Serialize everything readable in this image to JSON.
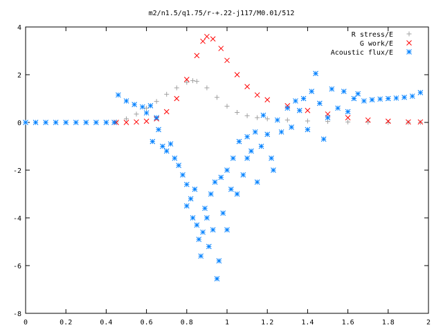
{
  "chart_data": {
    "type": "scatter",
    "title": "m2/n1.5/q1.75/r-+.22-j117/M0.01/512",
    "xlabel": "",
    "ylabel": "",
    "xlim": [
      0,
      2
    ],
    "ylim": [
      -8,
      4
    ],
    "x_ticks": [
      "0",
      "0.2",
      "0.4",
      "0.6",
      "0.8",
      "1",
      "1.2",
      "1.4",
      "1.6",
      "1.8",
      "2"
    ],
    "y_ticks": [
      "4",
      "2",
      "0",
      "-2",
      "-4",
      "-6",
      "-8"
    ],
    "grid": false,
    "legend_position": "top-right",
    "series": [
      {
        "name": "R stress/E",
        "marker": "+",
        "color": "#a0a0a0",
        "points": [
          [
            0.45,
            0.02
          ],
          [
            0.5,
            0.15
          ],
          [
            0.55,
            0.35
          ],
          [
            0.6,
            0.6
          ],
          [
            0.65,
            0.88
          ],
          [
            0.7,
            1.18
          ],
          [
            0.75,
            1.45
          ],
          [
            0.8,
            1.68
          ],
          [
            0.83,
            1.75
          ],
          [
            0.85,
            1.72
          ],
          [
            0.9,
            1.45
          ],
          [
            0.95,
            1.05
          ],
          [
            1.0,
            0.68
          ],
          [
            1.05,
            0.42
          ],
          [
            1.1,
            0.28
          ],
          [
            1.15,
            0.2
          ],
          [
            1.2,
            0.15
          ],
          [
            1.3,
            0.1
          ],
          [
            1.4,
            0.06
          ],
          [
            1.5,
            0.04
          ],
          [
            1.6,
            0.02
          ],
          [
            1.7,
            0.01
          ],
          [
            1.8,
            0.0
          ],
          [
            1.9,
            0.0
          ],
          [
            1.96,
            0.0
          ]
        ]
      },
      {
        "name": "G work/E",
        "marker": "x",
        "color": "#ff0000",
        "points": [
          [
            0.45,
            0.0
          ],
          [
            0.5,
            0.0
          ],
          [
            0.55,
            0.02
          ],
          [
            0.6,
            0.05
          ],
          [
            0.65,
            0.15
          ],
          [
            0.7,
            0.45
          ],
          [
            0.75,
            1.0
          ],
          [
            0.8,
            1.8
          ],
          [
            0.85,
            2.8
          ],
          [
            0.88,
            3.4
          ],
          [
            0.9,
            3.6
          ],
          [
            0.93,
            3.5
          ],
          [
            0.97,
            3.1
          ],
          [
            1.0,
            2.6
          ],
          [
            1.05,
            2.0
          ],
          [
            1.1,
            1.5
          ],
          [
            1.15,
            1.15
          ],
          [
            1.2,
            0.95
          ],
          [
            1.3,
            0.7
          ],
          [
            1.4,
            0.5
          ],
          [
            1.5,
            0.35
          ],
          [
            1.6,
            0.2
          ],
          [
            1.7,
            0.1
          ],
          [
            1.8,
            0.05
          ],
          [
            1.9,
            0.02
          ],
          [
            1.96,
            0.02
          ]
        ]
      },
      {
        "name": "Acoustic flux/E",
        "marker": "*",
        "color": "#0080ff",
        "points": [
          [
            0.0,
            0.0
          ],
          [
            0.05,
            0.0
          ],
          [
            0.1,
            0.0
          ],
          [
            0.15,
            0.0
          ],
          [
            0.2,
            0.0
          ],
          [
            0.25,
            0.0
          ],
          [
            0.3,
            0.0
          ],
          [
            0.35,
            0.0
          ],
          [
            0.4,
            0.0
          ],
          [
            0.44,
            0.0
          ],
          [
            0.46,
            1.15
          ],
          [
            0.5,
            0.9
          ],
          [
            0.54,
            0.75
          ],
          [
            0.58,
            0.65
          ],
          [
            0.6,
            0.4
          ],
          [
            0.62,
            0.7
          ],
          [
            0.63,
            -0.8
          ],
          [
            0.65,
            0.2
          ],
          [
            0.66,
            -0.3
          ],
          [
            0.68,
            -1.0
          ],
          [
            0.7,
            -1.2
          ],
          [
            0.72,
            -0.9
          ],
          [
            0.74,
            -1.5
          ],
          [
            0.76,
            -1.8
          ],
          [
            0.78,
            -2.2
          ],
          [
            0.8,
            -2.6
          ],
          [
            0.8,
            -3.5
          ],
          [
            0.82,
            -3.2
          ],
          [
            0.83,
            -4.0
          ],
          [
            0.84,
            -2.8
          ],
          [
            0.85,
            -4.3
          ],
          [
            0.86,
            -4.9
          ],
          [
            0.87,
            -5.6
          ],
          [
            0.88,
            -4.6
          ],
          [
            0.89,
            -3.6
          ],
          [
            0.9,
            -4.0
          ],
          [
            0.91,
            -5.2
          ],
          [
            0.92,
            -3.0
          ],
          [
            0.93,
            -4.5
          ],
          [
            0.94,
            -2.5
          ],
          [
            0.95,
            -6.55
          ],
          [
            0.96,
            -5.8
          ],
          [
            0.97,
            -2.3
          ],
          [
            0.98,
            -3.8
          ],
          [
            1.0,
            -2.0
          ],
          [
            1.0,
            -4.5
          ],
          [
            1.02,
            -2.8
          ],
          [
            1.03,
            -1.5
          ],
          [
            1.05,
            -3.0
          ],
          [
            1.06,
            -0.8
          ],
          [
            1.08,
            -2.2
          ],
          [
            1.1,
            -1.5
          ],
          [
            1.1,
            -0.6
          ],
          [
            1.12,
            -1.2
          ],
          [
            1.14,
            -0.4
          ],
          [
            1.15,
            -2.5
          ],
          [
            1.17,
            -1.0
          ],
          [
            1.18,
            0.3
          ],
          [
            1.2,
            -0.5
          ],
          [
            1.22,
            -1.5
          ],
          [
            1.23,
            -2.0
          ],
          [
            1.25,
            0.1
          ],
          [
            1.27,
            -0.4
          ],
          [
            1.3,
            0.6
          ],
          [
            1.32,
            -0.2
          ],
          [
            1.34,
            0.9
          ],
          [
            1.36,
            0.5
          ],
          [
            1.38,
            1.0
          ],
          [
            1.4,
            -0.3
          ],
          [
            1.42,
            1.3
          ],
          [
            1.44,
            2.05
          ],
          [
            1.46,
            0.8
          ],
          [
            1.48,
            -0.7
          ],
          [
            1.5,
            0.2
          ],
          [
            1.52,
            1.4
          ],
          [
            1.55,
            0.6
          ],
          [
            1.58,
            1.3
          ],
          [
            1.6,
            0.45
          ],
          [
            1.63,
            1.0
          ],
          [
            1.65,
            1.2
          ],
          [
            1.68,
            0.9
          ],
          [
            1.72,
            0.95
          ],
          [
            1.76,
            0.98
          ],
          [
            1.8,
            1.0
          ],
          [
            1.84,
            1.02
          ],
          [
            1.88,
            1.05
          ],
          [
            1.92,
            1.1
          ],
          [
            1.96,
            1.25
          ]
        ]
      }
    ]
  }
}
